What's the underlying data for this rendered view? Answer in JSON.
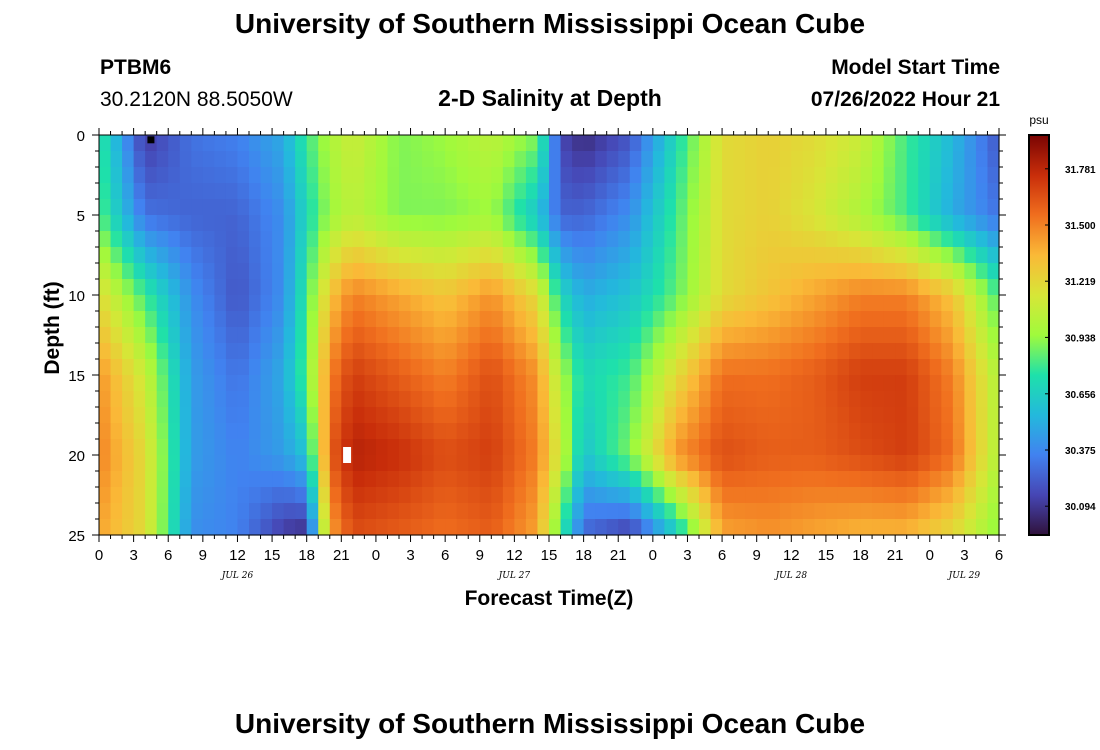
{
  "header": {
    "title": "University of Southern Mississippi Ocean Cube",
    "station": "PTBM6",
    "coords": "30.2120N  88.5050W",
    "plot_title": "2-D Salinity at Depth",
    "model_start_label": "Model Start Time",
    "model_start_value": "07/26/2022 Hour 21",
    "footer_title": "University of Southern Mississippi Ocean Cube"
  },
  "chart_data": {
    "type": "heatmap",
    "title": "2-D Salinity at Depth",
    "xlabel": "Forecast Time(Z)",
    "ylabel": "Depth (ft)",
    "x_hours": [
      0,
      78
    ],
    "x_tick_labels": [
      "0",
      "3",
      "6",
      "9",
      "12",
      "15",
      "18",
      "21",
      "0",
      "3",
      "6",
      "9",
      "12",
      "15",
      "18",
      "21",
      "0",
      "3",
      "6",
      "9",
      "12",
      "15",
      "18",
      "21",
      "0",
      "3",
      "6"
    ],
    "date_labels": [
      {
        "label": "JUL 26",
        "hour": 12
      },
      {
        "label": "JUL 27",
        "hour": 36
      },
      {
        "label": "JUL 28",
        "hour": 60
      },
      {
        "label": "JUL 29",
        "hour": 75
      }
    ],
    "y_range_ft": [
      0,
      25
    ],
    "y_ticks": [
      0,
      5,
      10,
      15,
      20,
      25
    ],
    "colorbar": {
      "unit": "psu",
      "range": [
        29.95,
        31.95
      ],
      "ticks": [
        "31.781",
        "31.500",
        "31.219",
        "30.938",
        "30.656",
        "30.375",
        "30.094"
      ]
    },
    "markers": [
      {
        "hour": 4.5,
        "depth": 0.3,
        "color": "#000000"
      },
      {
        "hour": 21.5,
        "depth": 20,
        "color": "#ffffff"
      }
    ],
    "salinity_samples": {
      "hours": [
        0,
        4,
        8,
        12,
        16,
        18,
        20,
        22,
        26,
        30,
        34,
        38,
        40,
        42,
        46,
        50,
        54,
        58,
        62,
        66,
        70,
        74,
        78
      ],
      "depths": [
        0,
        5,
        10,
        15,
        20,
        25
      ],
      "values": [
        [
          30.8,
          30.1,
          30.3,
          30.35,
          30.5,
          30.8,
          31.0,
          31.1,
          30.9,
          30.95,
          31.05,
          30.9,
          30.15,
          30.05,
          30.2,
          30.7,
          31.2,
          31.25,
          31.2,
          31.1,
          30.8,
          30.55,
          30.2
        ],
        [
          30.85,
          30.3,
          30.25,
          30.25,
          30.4,
          30.7,
          30.95,
          31.05,
          30.9,
          30.9,
          30.95,
          30.6,
          30.25,
          30.25,
          30.4,
          30.8,
          31.2,
          31.25,
          31.15,
          31.0,
          30.8,
          30.5,
          30.3
        ],
        [
          31.2,
          30.8,
          30.4,
          30.2,
          30.4,
          30.8,
          31.3,
          31.5,
          31.4,
          31.3,
          31.45,
          31.2,
          30.7,
          30.5,
          30.6,
          30.85,
          31.2,
          31.3,
          31.4,
          31.5,
          31.5,
          31.3,
          30.8
        ],
        [
          31.45,
          31.1,
          30.45,
          30.3,
          30.5,
          30.85,
          31.5,
          31.7,
          31.6,
          31.5,
          31.65,
          31.45,
          31.0,
          30.7,
          30.8,
          31.2,
          31.55,
          31.55,
          31.6,
          31.7,
          31.7,
          31.5,
          31.0
        ],
        [
          31.5,
          31.2,
          30.45,
          30.35,
          30.45,
          30.6,
          31.6,
          31.8,
          31.75,
          31.65,
          31.7,
          31.5,
          31.1,
          30.6,
          30.9,
          31.45,
          31.65,
          31.6,
          31.6,
          31.65,
          31.7,
          31.55,
          31.0
        ],
        [
          31.4,
          31.2,
          30.4,
          30.35,
          30.1,
          30.05,
          31.4,
          31.65,
          31.6,
          31.55,
          31.6,
          31.4,
          30.8,
          30.25,
          30.1,
          30.6,
          31.4,
          31.45,
          31.4,
          31.35,
          31.35,
          31.2,
          30.9
        ]
      ]
    }
  }
}
